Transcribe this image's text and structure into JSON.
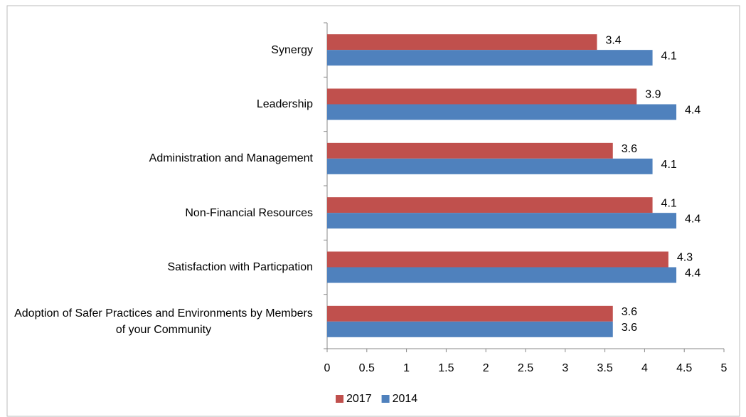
{
  "chart_data": {
    "type": "bar",
    "orientation": "horizontal",
    "categories": [
      "Synergy",
      "Leadership",
      "Administration and Management",
      "Non-Financial Resources",
      "Satisfaction with Particpation",
      "Adoption of Safer Practices and Environments by Members of your Community"
    ],
    "series": [
      {
        "name": "2017",
        "color": "#c0504d",
        "values": [
          3.4,
          3.9,
          3.6,
          4.1,
          4.3,
          3.6
        ]
      },
      {
        "name": "2014",
        "color": "#4f81bd",
        "values": [
          4.1,
          4.4,
          4.1,
          4.4,
          4.4,
          3.6
        ]
      }
    ],
    "xlim": [
      0,
      5
    ],
    "xticks": [
      0,
      0.5,
      1,
      1.5,
      2,
      2.5,
      3,
      3.5,
      4,
      4.5,
      5
    ],
    "grid": false,
    "legend": "bottom"
  }
}
